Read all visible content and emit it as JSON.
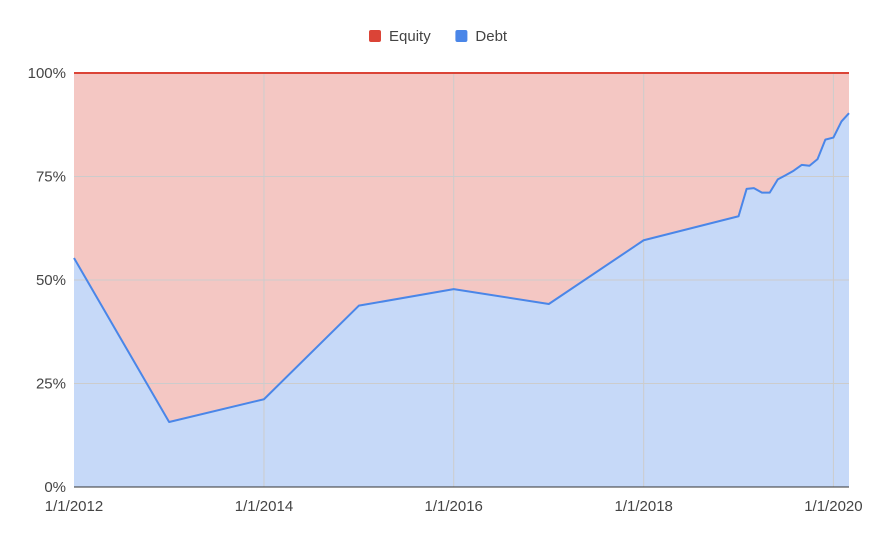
{
  "chart_data": {
    "type": "area",
    "stacked": "percent",
    "legend": {
      "placement": "top",
      "items": [
        "Equity",
        "Debt"
      ]
    },
    "x_axis": {
      "type": "date",
      "range": [
        "2012-01-01",
        "2020-03-01"
      ],
      "ticks": [
        {
          "value": "2012-01-01",
          "label": "1/1/2012"
        },
        {
          "value": "2014-01-01",
          "label": "1/1/2014"
        },
        {
          "value": "2016-01-01",
          "label": "1/1/2016"
        },
        {
          "value": "2018-01-01",
          "label": "1/1/2018"
        },
        {
          "value": "2020-01-01",
          "label": "1/1/2020"
        }
      ]
    },
    "y_axis": {
      "range": [
        0,
        100
      ],
      "unit": "%",
      "ticks": [
        {
          "value": 0,
          "label": "0%"
        },
        {
          "value": 25,
          "label": "25%"
        },
        {
          "value": 50,
          "label": "50%"
        },
        {
          "value": 75,
          "label": "75%"
        },
        {
          "value": 100,
          "label": "100%"
        }
      ]
    },
    "grid": true,
    "series": [
      {
        "name": "Debt",
        "color": "#4a86e8",
        "fill": "#c6d9f8"
      },
      {
        "name": "Equity",
        "color": "#db4437",
        "fill": "#f4c7c3"
      }
    ],
    "x": [
      "2012-01-01",
      "2013-01-01",
      "2014-01-01",
      "2015-01-01",
      "2016-01-01",
      "2017-01-01",
      "2018-01-01",
      "2019-01-01",
      "2019-02-01",
      "2019-03-01",
      "2019-04-01",
      "2019-05-01",
      "2019-06-01",
      "2019-07-01",
      "2019-08-01",
      "2019-09-01",
      "2019-10-01",
      "2019-11-01",
      "2019-12-01",
      "2020-01-01",
      "2020-02-01",
      "2020-03-01"
    ],
    "debt_pct": [
      55.3,
      15.7,
      21.2,
      43.8,
      47.8,
      44.2,
      59.6,
      65.4,
      72.0,
      72.2,
      71.1,
      71.1,
      74.3,
      75.3,
      76.4,
      77.8,
      77.6,
      79.2,
      83.9,
      84.4,
      88.3,
      90.3
    ],
    "equity_pct": [
      44.7,
      84.3,
      78.8,
      56.2,
      52.2,
      55.8,
      40.4,
      34.6,
      28.0,
      27.8,
      28.9,
      28.9,
      25.7,
      24.7,
      23.6,
      22.2,
      22.4,
      20.8,
      16.1,
      15.6,
      11.7,
      9.7
    ]
  }
}
